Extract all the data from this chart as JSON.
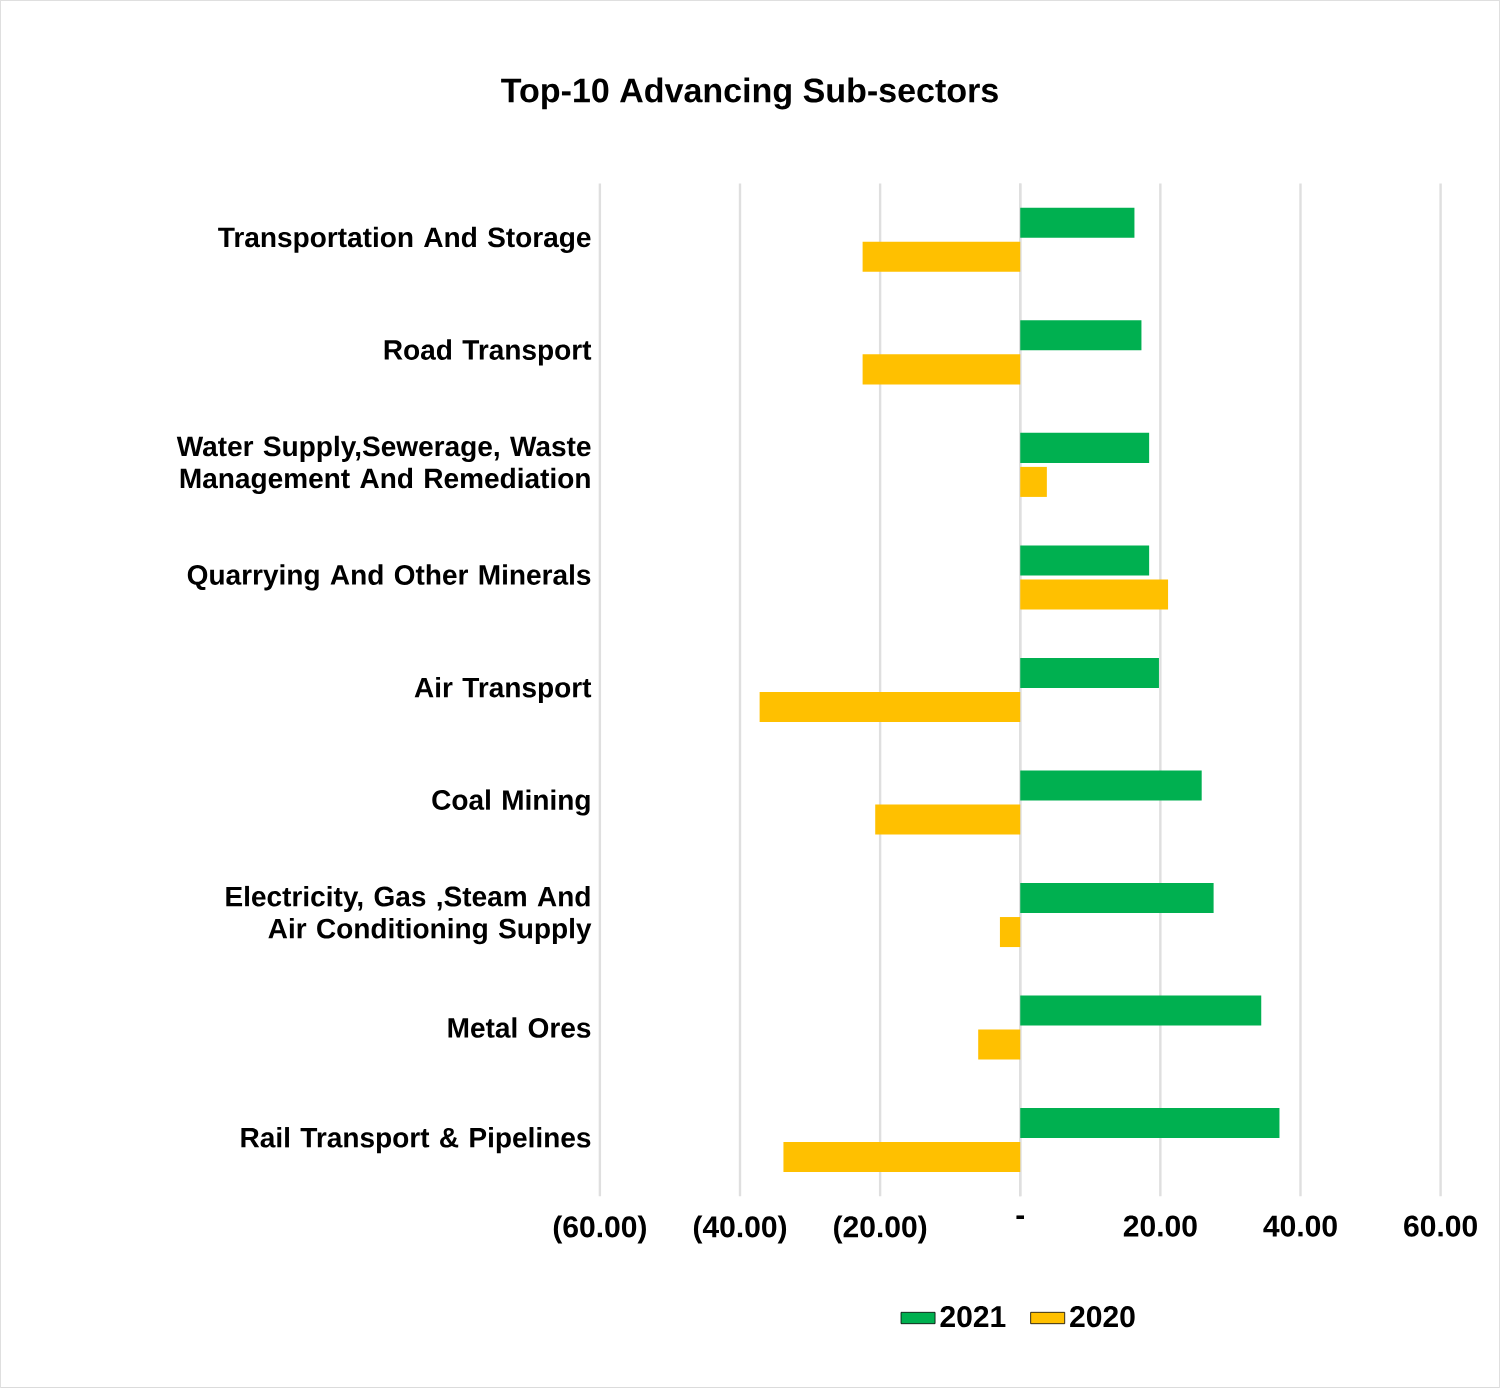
{
  "chart_data": {
    "type": "bar",
    "orientation": "horizontal",
    "title": "Top-10 Advancing Sub-sectors",
    "categories": [
      "Transportation And Storage",
      "Road Transport",
      "Water Supply,Sewerage, Waste Management And Remediation",
      "Quarrying And Other Minerals",
      "Air Transport",
      "Coal Mining",
      "Electricity, Gas ,Steam And Air Conditioning Supply",
      "Metal Ores",
      "Rail Transport & Pipelines"
    ],
    "series": [
      {
        "name": "2021",
        "color": "#00b050",
        "values": [
          16.3,
          17.3,
          18.4,
          18.4,
          19.8,
          25.9,
          27.6,
          34.4,
          37.0
        ]
      },
      {
        "name": "2020",
        "color": "#ffc000",
        "values": [
          -22.5,
          -22.5,
          3.8,
          21.1,
          -37.2,
          -20.7,
          -2.9,
          -6.0,
          -33.8
        ]
      }
    ],
    "xlim": [
      -60,
      60
    ],
    "xticks": [
      {
        "value": -60,
        "label": "(60.00)"
      },
      {
        "value": -40,
        "label": "(40.00)"
      },
      {
        "value": -20,
        "label": "(20.00)"
      },
      {
        "value": 0,
        "label": "-"
      },
      {
        "value": 20,
        "label": "20.00"
      },
      {
        "value": 40,
        "label": "40.00"
      },
      {
        "value": 60,
        "label": "60.00"
      }
    ],
    "grid": "x",
    "legend": "bottom"
  }
}
